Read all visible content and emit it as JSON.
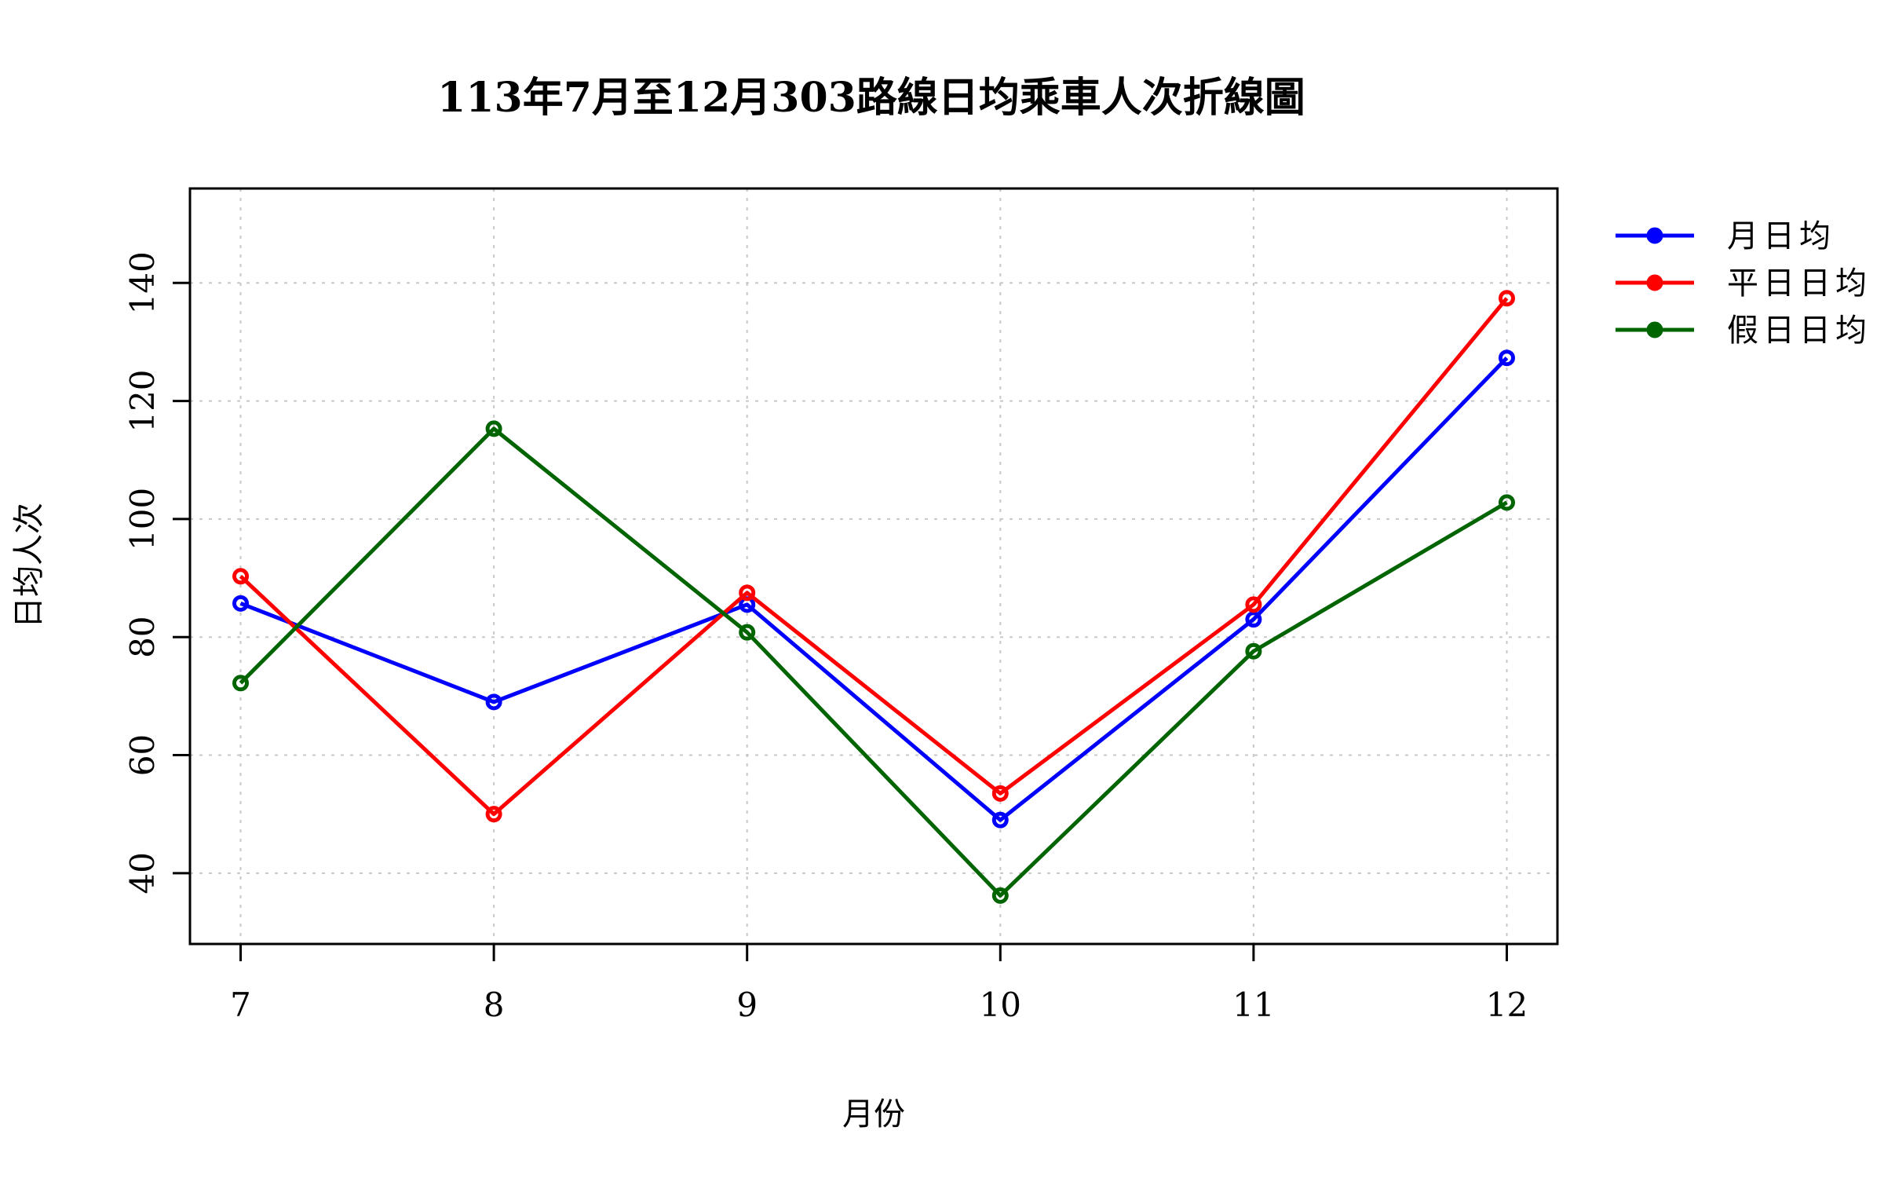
{
  "chart_data": {
    "type": "line",
    "title": "113年7月至12月303路線日均乘車人次折線圖",
    "xlabel": "月份",
    "ylabel": "日均人次",
    "x": [
      7,
      8,
      9,
      10,
      11,
      12
    ],
    "xlim": [
      6.8,
      12.2
    ],
    "ylim": [
      28,
      156
    ],
    "yticks": [
      40,
      60,
      80,
      100,
      120,
      140
    ],
    "grid": true,
    "legend_position": "top-right-outside",
    "series": [
      {
        "name": "月日均",
        "color": "#0000ff",
        "values": [
          85.7,
          69.0,
          85.5,
          49.0,
          83.0,
          127.3
        ]
      },
      {
        "name": "平日日均",
        "color": "#ff0000",
        "values": [
          90.3,
          50.0,
          87.5,
          53.5,
          85.5,
          137.4
        ]
      },
      {
        "name": "假日日均",
        "color": "#006400",
        "values": [
          72.2,
          115.3,
          80.8,
          36.2,
          77.6,
          102.8
        ]
      }
    ]
  }
}
